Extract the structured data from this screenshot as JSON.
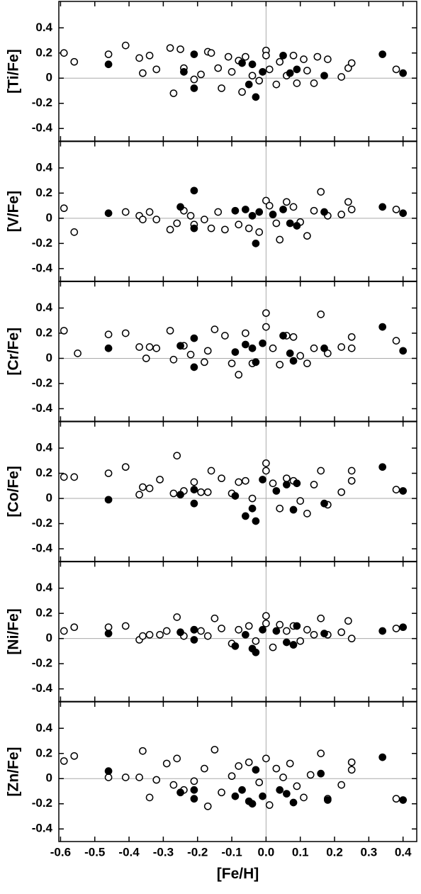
{
  "chart_data": [
    {
      "type": "scatter",
      "ylabel": "[Ti/Fe]",
      "xlim": [
        -0.605,
        0.44
      ],
      "ylim": [
        -0.5,
        0.61
      ],
      "xticks": [
        -0.6,
        -0.5,
        -0.4,
        -0.3,
        -0.2,
        -0.1,
        {
          "value": 0,
          "label": "0.0"
        },
        0.1,
        0.2,
        0.3,
        0.4
      ],
      "yticks": [
        0.4,
        0.2,
        0,
        -0.2,
        -0.4
      ],
      "series": [
        {
          "color": "#000000",
          "filled": false,
          "x": [
            -0.59,
            -0.56,
            -0.46,
            -0.41,
            -0.37,
            -0.36,
            -0.34,
            -0.32,
            -0.28,
            -0.27,
            -0.25,
            -0.24,
            -0.21,
            -0.19,
            -0.17,
            -0.16,
            -0.14,
            -0.13,
            -0.11,
            -0.1,
            -0.08,
            -0.07,
            -0.06,
            -0.04,
            -0.02,
            0,
            0,
            0.01,
            0.03,
            0.04,
            0.06,
            0.08,
            0.09,
            0.11,
            0.12,
            0.14,
            0.15,
            0.18,
            0.22,
            0.24,
            0.25,
            0.38
          ],
          "values": [
            0.2,
            0.13,
            0.19,
            0.26,
            0.16,
            0.04,
            0.18,
            0.07,
            0.24,
            -0.12,
            0.23,
            0.08,
            -0.01,
            0.03,
            0.21,
            0.2,
            0.08,
            -0.08,
            0.17,
            0.05,
            0.14,
            -0.11,
            0.17,
            0.02,
            -0.02,
            0.22,
            0.18,
            0.07,
            -0.05,
            0.13,
            0.02,
            0.18,
            -0.04,
            0.15,
            0.06,
            -0.04,
            0.17,
            0.15,
            0.01,
            0.08,
            0.12,
            0.07
          ]
        },
        {
          "color": "#000000",
          "filled": true,
          "x": [
            -0.46,
            -0.24,
            -0.21,
            -0.21,
            -0.07,
            -0.05,
            -0.04,
            -0.03,
            -0.01,
            0.05,
            0.07,
            0.09,
            0.17,
            0.34,
            0.4
          ],
          "values": [
            0.11,
            0.05,
            0.19,
            -0.08,
            0.12,
            -0.05,
            0.11,
            -0.15,
            0.05,
            0.18,
            0.04,
            0.07,
            0.02,
            0.19,
            0.04
          ]
        }
      ]
    },
    {
      "type": "scatter",
      "ylabel": "[V/Fe]",
      "xlim": [
        -0.605,
        0.44
      ],
      "ylim": [
        -0.5,
        0.61
      ],
      "xticks": [
        -0.6,
        -0.5,
        -0.4,
        -0.3,
        -0.2,
        -0.1,
        {
          "value": 0,
          "label": "0.0"
        },
        0.1,
        0.2,
        0.3,
        0.4
      ],
      "yticks": [
        0.4,
        0.2,
        0,
        -0.2,
        -0.4
      ],
      "series": [
        {
          "color": "#000000",
          "filled": false,
          "x": [
            -0.59,
            -0.56,
            -0.41,
            -0.37,
            -0.36,
            -0.34,
            -0.32,
            -0.28,
            -0.26,
            -0.24,
            -0.22,
            -0.21,
            -0.18,
            -0.16,
            -0.14,
            -0.12,
            -0.08,
            -0.05,
            -0.02,
            0,
            0.01,
            0.03,
            0.04,
            0.06,
            0.08,
            0.1,
            0.12,
            0.14,
            0.16,
            0.18,
            0.22,
            0.24,
            0.25,
            0.38
          ],
          "values": [
            0.08,
            -0.11,
            0.05,
            0.02,
            -0.01,
            0.05,
            -0.01,
            -0.09,
            -0.04,
            0.06,
            0.02,
            -0.05,
            -0.01,
            -0.08,
            0.05,
            -0.09,
            -0.05,
            -0.08,
            -0.11,
            0.14,
            0.1,
            -0.04,
            -0.17,
            0.13,
            0.09,
            -0.03,
            -0.14,
            0.06,
            0.21,
            0.02,
            0.03,
            0.13,
            0.07,
            0.07
          ]
        },
        {
          "color": "#000000",
          "filled": true,
          "x": [
            -0.46,
            -0.25,
            -0.21,
            -0.21,
            -0.09,
            -0.06,
            -0.04,
            -0.03,
            -0.02,
            0.02,
            0.05,
            0.07,
            0.09,
            0.17,
            0.34,
            0.4
          ],
          "values": [
            0.04,
            0.09,
            0.22,
            -0.08,
            0.06,
            0.07,
            0.02,
            -0.2,
            0.05,
            0.03,
            0.07,
            -0.04,
            -0.06,
            0.05,
            0.09,
            0.04
          ]
        }
      ]
    },
    {
      "type": "scatter",
      "ylabel": "[Cr/Fe]",
      "xlim": [
        -0.605,
        0.44
      ],
      "ylim": [
        -0.5,
        0.61
      ],
      "xticks": [
        -0.6,
        -0.5,
        -0.4,
        -0.3,
        -0.2,
        -0.1,
        {
          "value": 0,
          "label": "0.0"
        },
        0.1,
        0.2,
        0.3,
        0.4
      ],
      "yticks": [
        0.4,
        0.2,
        0,
        -0.2,
        -0.4
      ],
      "series": [
        {
          "color": "#000000",
          "filled": false,
          "x": [
            -0.59,
            -0.55,
            -0.46,
            -0.41,
            -0.37,
            -0.35,
            -0.34,
            -0.32,
            -0.28,
            -0.27,
            -0.24,
            -0.22,
            -0.18,
            -0.17,
            -0.15,
            -0.12,
            -0.1,
            -0.08,
            -0.06,
            -0.04,
            0,
            0,
            0.02,
            0.04,
            0.06,
            0.08,
            0.1,
            0.12,
            0.14,
            0.16,
            0.18,
            0.22,
            0.25,
            0.25,
            0.38
          ],
          "values": [
            0.22,
            0.04,
            0.19,
            0.2,
            0.09,
            0,
            0.09,
            0.08,
            0.22,
            -0.01,
            0.1,
            0.03,
            -0.03,
            0.06,
            0.23,
            0.18,
            -0.04,
            -0.13,
            0.2,
            -0.04,
            0.36,
            0.25,
            0.08,
            -0.05,
            0.18,
            0.17,
            0.02,
            -0.04,
            0.08,
            0.35,
            0.04,
            0.09,
            0.17,
            0.08,
            0.14
          ]
        },
        {
          "color": "#000000",
          "filled": true,
          "x": [
            -0.46,
            -0.25,
            -0.21,
            -0.21,
            -0.09,
            -0.06,
            -0.04,
            -0.03,
            -0.01,
            0.05,
            0.07,
            0.08,
            0.17,
            0.34,
            0.4
          ],
          "values": [
            0.08,
            0.1,
            0.16,
            -0.07,
            0.05,
            0.11,
            0.08,
            -0.03,
            0.12,
            0.18,
            0.04,
            -0.02,
            0.08,
            0.25,
            0.06
          ]
        }
      ]
    },
    {
      "type": "scatter",
      "ylabel": "[Co/Fe]",
      "xlim": [
        -0.605,
        0.44
      ],
      "ylim": [
        -0.5,
        0.61
      ],
      "xticks": [
        -0.6,
        -0.5,
        -0.4,
        -0.3,
        -0.2,
        -0.1,
        {
          "value": 0,
          "label": "0.0"
        },
        0.1,
        0.2,
        0.3,
        0.4
      ],
      "yticks": [
        0.4,
        0.2,
        0,
        -0.2,
        -0.4
      ],
      "series": [
        {
          "color": "#000000",
          "filled": false,
          "x": [
            -0.59,
            -0.56,
            -0.46,
            -0.41,
            -0.37,
            -0.36,
            -0.34,
            -0.31,
            -0.27,
            -0.26,
            -0.24,
            -0.21,
            -0.19,
            -0.17,
            -0.16,
            -0.13,
            -0.1,
            -0.08,
            -0.06,
            -0.04,
            0,
            0,
            0.02,
            0.04,
            0.06,
            0.08,
            0.1,
            0.12,
            0.14,
            0.16,
            0.18,
            0.22,
            0.25,
            0.25,
            0.38
          ],
          "values": [
            0.17,
            0.17,
            0.2,
            0.25,
            0.03,
            0.09,
            0.08,
            0.15,
            0.04,
            0.34,
            0.06,
            0.13,
            0.05,
            0.05,
            0.22,
            0.16,
            0.04,
            0.13,
            0.14,
            0,
            0.28,
            0.22,
            0.12,
            -0.08,
            0.16,
            0.14,
            -0.02,
            -0.12,
            0.11,
            0.22,
            -0.05,
            0.05,
            0.22,
            0.14,
            0.07
          ]
        },
        {
          "color": "#000000",
          "filled": true,
          "x": [
            -0.46,
            -0.25,
            -0.21,
            -0.21,
            -0.09,
            -0.06,
            -0.04,
            -0.03,
            -0.01,
            0.03,
            0.06,
            0.08,
            0.09,
            0.17,
            0.34,
            0.4
          ],
          "values": [
            -0.01,
            0.03,
            0.07,
            -0.04,
            0.02,
            -0.14,
            -0.08,
            -0.18,
            0.15,
            0.06,
            0.11,
            -0.09,
            0.12,
            -0.04,
            0.25,
            0.06
          ]
        }
      ]
    },
    {
      "type": "scatter",
      "ylabel": "[Ni/Fe]",
      "xlim": [
        -0.605,
        0.44
      ],
      "ylim": [
        -0.5,
        0.61
      ],
      "xticks": [
        -0.6,
        -0.5,
        -0.4,
        -0.3,
        -0.2,
        -0.1,
        {
          "value": 0,
          "label": "0.0"
        },
        0.1,
        0.2,
        0.3,
        0.4
      ],
      "yticks": [
        0.4,
        0.2,
        0,
        -0.2,
        -0.4
      ],
      "series": [
        {
          "color": "#000000",
          "filled": false,
          "x": [
            -0.59,
            -0.56,
            -0.46,
            -0.41,
            -0.37,
            -0.36,
            -0.34,
            -0.31,
            -0.29,
            -0.26,
            -0.24,
            -0.21,
            -0.19,
            -0.17,
            -0.15,
            -0.13,
            -0.1,
            -0.08,
            -0.05,
            -0.03,
            0,
            0,
            0.02,
            0.04,
            0.06,
            0.08,
            0.1,
            0.12,
            0.14,
            0.16,
            0.18,
            0.22,
            0.24,
            0.25,
            0.38
          ],
          "values": [
            0.06,
            0.09,
            0.09,
            0.1,
            -0.01,
            0.02,
            0.03,
            0.03,
            0.06,
            0.17,
            0.02,
            0.07,
            0.06,
            0.02,
            0.16,
            0.08,
            -0.04,
            0.07,
            0.1,
            -0.02,
            0.18,
            0.12,
            -0.07,
            0.11,
            0.06,
            0.1,
            -0.02,
            0.07,
            0.03,
            0.16,
            0.03,
            0.05,
            0.14,
            0,
            0.08
          ]
        },
        {
          "color": "#000000",
          "filled": true,
          "x": [
            -0.46,
            -0.25,
            -0.21,
            -0.21,
            -0.09,
            -0.06,
            -0.04,
            -0.03,
            -0.01,
            0.03,
            0.06,
            0.08,
            0.09,
            0.17,
            0.34,
            0.4
          ],
          "values": [
            0.04,
            0.05,
            0.07,
            -0.01,
            -0.06,
            0.03,
            -0.08,
            -0.11,
            0.07,
            0.06,
            -0.03,
            -0.05,
            0.1,
            0.04,
            0.06,
            0.09
          ]
        }
      ]
    },
    {
      "type": "scatter",
      "ylabel": "[Zn/Fe]",
      "xlabel": "[Fe/H]",
      "xlim": [
        -0.605,
        0.44
      ],
      "ylim": [
        -0.5,
        0.61
      ],
      "xticks": [
        -0.6,
        -0.5,
        -0.4,
        -0.3,
        -0.2,
        -0.1,
        {
          "value": 0,
          "label": "0.0"
        },
        0.1,
        0.2,
        0.3,
        0.4
      ],
      "yticks": [
        0.4,
        0.2,
        0,
        -0.2,
        -0.4
      ],
      "series": [
        {
          "color": "#000000",
          "filled": false,
          "x": [
            -0.59,
            -0.56,
            -0.46,
            -0.41,
            -0.37,
            -0.36,
            -0.34,
            -0.32,
            -0.29,
            -0.27,
            -0.26,
            -0.24,
            -0.21,
            -0.18,
            -0.17,
            -0.15,
            -0.13,
            -0.1,
            -0.08,
            -0.05,
            -0.02,
            0,
            0.01,
            0.03,
            0.05,
            0.07,
            0.09,
            0.11,
            0.13,
            0.16,
            0.18,
            0.22,
            0.25,
            0.25,
            0.38
          ],
          "values": [
            0.14,
            0.18,
            0.01,
            0.01,
            0.01,
            0.22,
            -0.15,
            -0.01,
            0.12,
            -0.05,
            0.16,
            -0.09,
            -0.02,
            0.08,
            -0.22,
            0.23,
            -0.11,
            0.02,
            0.1,
            0.13,
            -0.03,
            0.16,
            -0.21,
            0.08,
            0.01,
            0.12,
            -0.06,
            -0.15,
            0.03,
            0.2,
            -0.16,
            -0.05,
            0.13,
            0.07,
            -0.16
          ]
        },
        {
          "color": "#000000",
          "filled": true,
          "x": [
            -0.46,
            -0.25,
            -0.21,
            -0.21,
            -0.09,
            -0.07,
            -0.05,
            -0.04,
            -0.03,
            -0.01,
            0.04,
            0.06,
            0.08,
            0.16,
            0.18,
            0.34,
            0.4
          ],
          "values": [
            0.06,
            -0.11,
            -0.09,
            -0.16,
            -0.14,
            -0.09,
            -0.18,
            -0.2,
            0.07,
            -0.14,
            -0.09,
            -0.12,
            -0.19,
            0.04,
            -0.17,
            0.17,
            -0.17
          ]
        }
      ]
    }
  ]
}
